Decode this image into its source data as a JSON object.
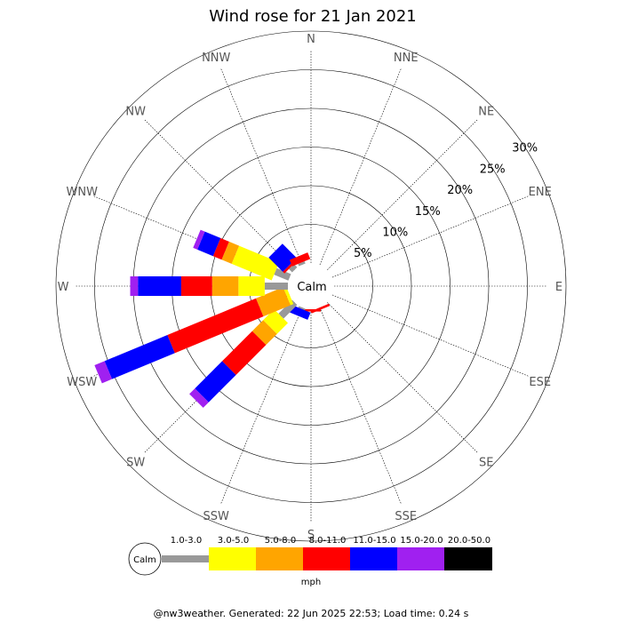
{
  "chart_data": {
    "type": "wind-rose",
    "title": "Wind rose for 21 Jan 2021",
    "directions": [
      "N",
      "NNE",
      "NE",
      "ENE",
      "E",
      "ESE",
      "SE",
      "SSE",
      "S",
      "SSW",
      "SW",
      "WSW",
      "W",
      "WNW",
      "NW",
      "NNW"
    ],
    "rings_percent": [
      5,
      10,
      15,
      20,
      25,
      30
    ],
    "ring_labels": [
      "5%",
      "10%",
      "15%",
      "20%",
      "25%",
      "30%"
    ],
    "calm_label": "Calm",
    "speed_bins": [
      {
        "label": "1.0-3.0",
        "color": "#999999"
      },
      {
        "label": "3.0-5.0",
        "color": "#ffff00"
      },
      {
        "label": "5.0-8.0",
        "color": "#ffa500"
      },
      {
        "label": "8.0-11.0",
        "color": "#ff0000"
      },
      {
        "label": "11.0-15.0",
        "color": "#0000ff"
      },
      {
        "label": "15.0-20.0",
        "color": "#a020f0"
      },
      {
        "label": "20.0-50.0",
        "color": "#000000"
      }
    ],
    "units": "mph",
    "cumulative_percent": {
      "N": [
        0,
        0,
        0,
        0,
        0,
        0,
        0
      ],
      "NNE": [
        0,
        0,
        0,
        0,
        0,
        0,
        0
      ],
      "NE": [
        0,
        0,
        0,
        0,
        0,
        0,
        0
      ],
      "ENE": [
        0,
        0,
        0,
        0,
        0,
        0,
        0
      ],
      "E": [
        0,
        0,
        0,
        0,
        0,
        0,
        0
      ],
      "ESE": [
        0,
        0,
        0,
        0,
        0,
        0,
        0
      ],
      "SE": [
        0,
        0,
        0,
        0,
        0,
        0,
        0
      ],
      "SSE": [
        0,
        0,
        0,
        0.3,
        0.3,
        0.3,
        0.3
      ],
      "S": [
        0,
        0,
        0,
        0.3,
        0.3,
        0.3,
        0.3
      ],
      "SSW": [
        0.2,
        0.2,
        0.2,
        0.2,
        1.2,
        1.2,
        1.2
      ],
      "SW": [
        2.5,
        4.5,
        6.5,
        12.0,
        17.0,
        18.0,
        18.0
      ],
      "WSW": [
        0,
        0.4,
        4.2,
        16.6,
        25.4,
        26.8,
        26.8
      ],
      "W": [
        3.0,
        6.4,
        9.8,
        13.8,
        19.4,
        20.4,
        20.4
      ],
      "WNW": [
        2.0,
        7.6,
        9.0,
        10.2,
        12.4,
        13.0,
        13.0
      ],
      "NW": [
        0.6,
        0.6,
        0.6,
        0.9,
        3.5,
        3.5,
        3.5
      ],
      "NNW": [
        0.3,
        0.3,
        0.3,
        1.2,
        1.2,
        1.2,
        1.2
      ]
    },
    "legend_position": "bottom"
  },
  "footer": "@nw3weather. Generated: 22 Jun 2025 22:53; Load time: 0.24 s"
}
